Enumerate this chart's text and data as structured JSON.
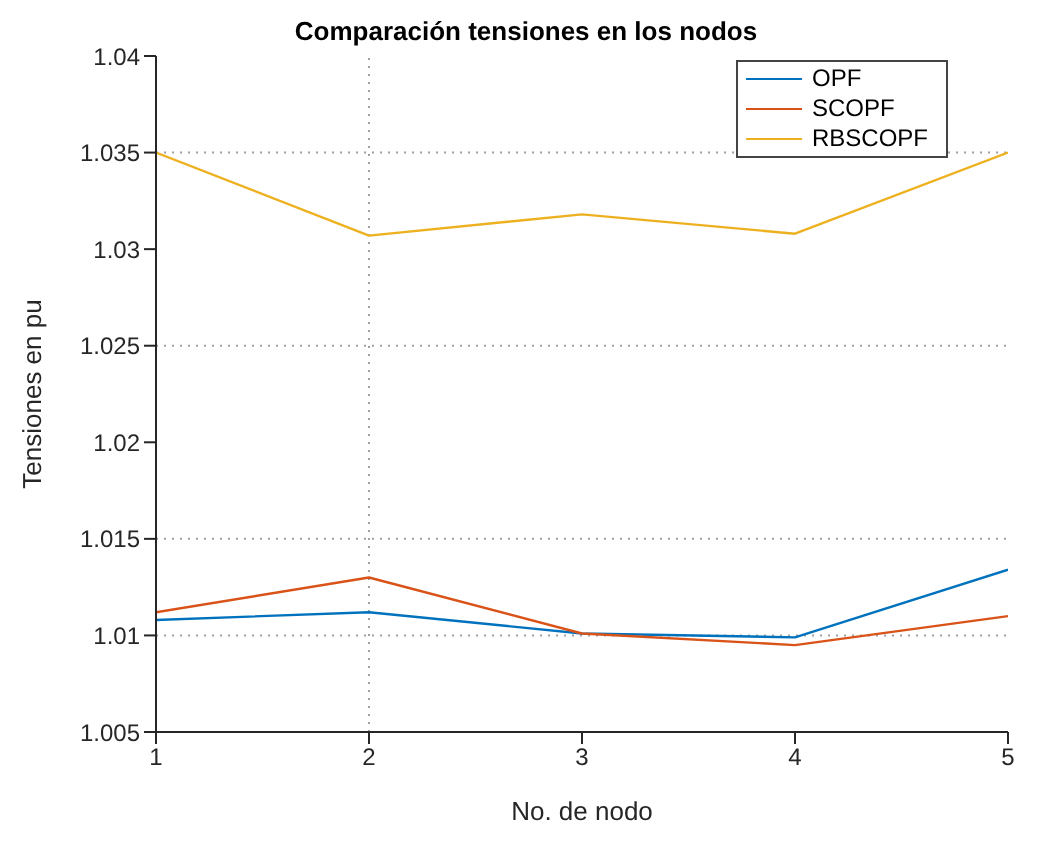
{
  "chart_data": {
    "type": "line",
    "title": "Comparación tensiones en los nodos",
    "xlabel": "No. de nodo",
    "ylabel": "Tensiones en pu",
    "x": [
      1,
      2,
      3,
      4,
      5
    ],
    "xlim": [
      1,
      5
    ],
    "xticks": [
      1,
      2,
      3,
      4,
      5
    ],
    "ylim": [
      1.005,
      1.04
    ],
    "yticks": [
      1.005,
      1.01,
      1.015,
      1.02,
      1.025,
      1.03,
      1.035,
      1.04
    ],
    "series": [
      {
        "name": "OPF",
        "color": "#0072bd",
        "values": [
          1.0108,
          1.0112,
          1.0101,
          1.0099,
          1.0134
        ]
      },
      {
        "name": "SCOPF",
        "color": "#d95319",
        "values": [
          1.0112,
          1.013,
          1.0101,
          1.0095,
          1.011
        ]
      },
      {
        "name": "RBSCOPF",
        "color": "#edb120",
        "values": [
          1.035,
          1.0307,
          1.0318,
          1.0308,
          1.035
        ]
      }
    ],
    "ref_lines": [
      {
        "axis": "x",
        "value": 2,
        "color": "#a0a0a0",
        "line_style": "dotted"
      },
      {
        "axis": "y",
        "value": 1.035,
        "color": "#a0a0a0",
        "line_style": "dotted"
      },
      {
        "axis": "y",
        "value": 1.025,
        "color": "#a0a0a0",
        "line_style": "dotted"
      },
      {
        "axis": "y",
        "value": 1.015,
        "color": "#a0a0a0",
        "line_style": "dotted"
      },
      {
        "axis": "y",
        "value": 1.01,
        "color": "#a0a0a0",
        "line_style": "dotted"
      }
    ],
    "legend": "top right",
    "marker": "none",
    "line_style": "solid"
  }
}
